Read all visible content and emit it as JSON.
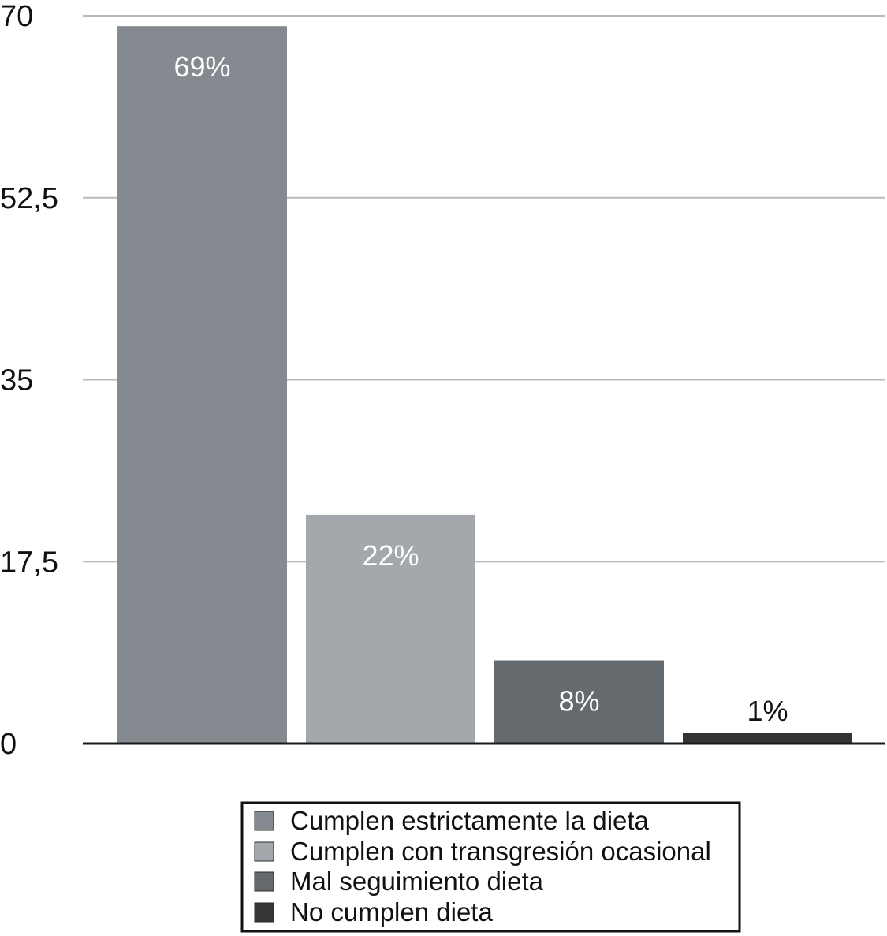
{
  "chart_data": {
    "type": "bar",
    "title": "",
    "xlabel": "",
    "ylabel": "",
    "ylim": [
      0,
      70
    ],
    "yticks": [
      "0",
      "17,5",
      "35",
      "52,5",
      "70"
    ],
    "ytick_values": [
      0,
      17.5,
      35,
      52.5,
      70
    ],
    "grid": true,
    "legend_position": "bottom",
    "categories": [
      "Cumplen estrictamente la dieta",
      "Cumplen con transgresión ocasional",
      "Mal seguimiento dieta",
      "No cumplen dieta"
    ],
    "values": [
      69,
      22,
      8,
      1
    ],
    "data_labels": [
      "69%",
      "22%",
      "8%",
      "1%"
    ],
    "colors": [
      "#858a90",
      "#a4a8ad",
      "#656a6e",
      "#333537"
    ],
    "label_colors": [
      "#ffffff",
      "#ffffff",
      "#ffffff",
      "#111111"
    ]
  }
}
